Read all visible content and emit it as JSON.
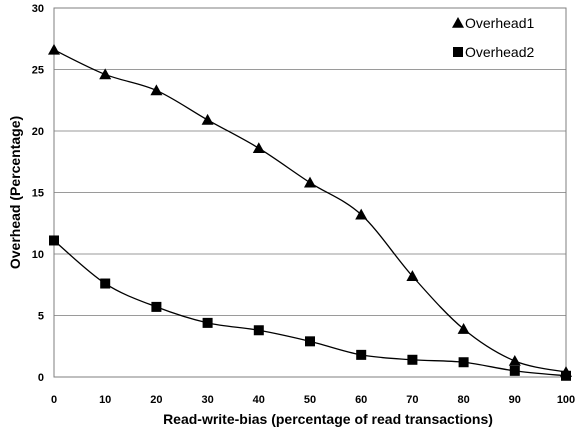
{
  "chart_data": {
    "type": "line",
    "xlabel": "Read-write-bias (percentage of read transactions)",
    "ylabel": "Overhead  (Percentage)",
    "xlim": [
      0,
      100
    ],
    "ylim": [
      0,
      30
    ],
    "x_ticks": [
      0,
      10,
      20,
      30,
      40,
      50,
      60,
      70,
      80,
      90,
      100
    ],
    "y_ticks": [
      0,
      5,
      10,
      15,
      20,
      25,
      30
    ],
    "grid": "horizontal",
    "legend_position": "top-right",
    "x": [
      0,
      10,
      20,
      30,
      40,
      50,
      60,
      70,
      80,
      90,
      100
    ],
    "series": [
      {
        "name": "Overhead1",
        "marker": "triangle",
        "color": "#000000",
        "values": [
          26.6,
          24.6,
          23.3,
          20.9,
          18.6,
          15.8,
          13.2,
          8.2,
          3.9,
          1.3,
          0.4
        ]
      },
      {
        "name": "Overhead2",
        "marker": "square",
        "color": "#000000",
        "values": [
          11.1,
          7.6,
          5.7,
          4.4,
          3.8,
          2.9,
          1.8,
          1.4,
          1.2,
          0.5,
          0.1
        ]
      }
    ]
  }
}
